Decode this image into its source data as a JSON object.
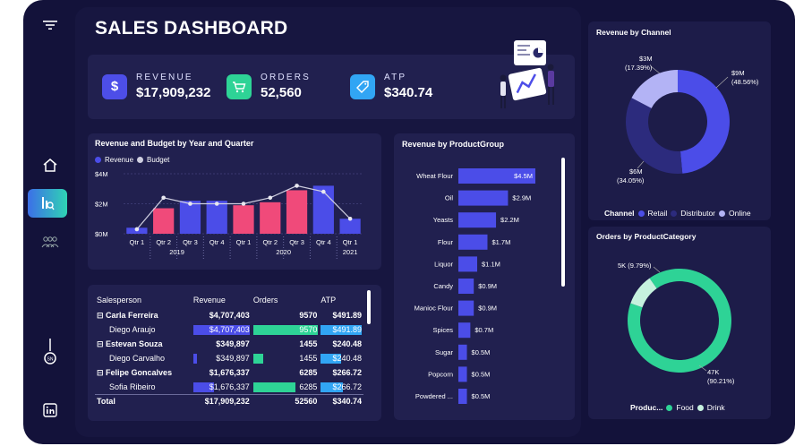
{
  "dashboard": {
    "title": "SALES DASHBOARD"
  },
  "colors": {
    "revenue": "#4b4de8",
    "budget": "#f04a7a",
    "retail": "#4b4de8",
    "distributor": "#2c2b7d",
    "online": "#b3b3f5",
    "food": "#2ed396",
    "drink": "#c6f1de",
    "frame": "#13123a",
    "panel": "#21204f"
  },
  "sidebar": {
    "items": [
      {
        "icon": "filter-icon"
      },
      {
        "icon": "home-icon"
      },
      {
        "icon": "report-icon",
        "active": true
      },
      {
        "icon": "people-icon"
      },
      {
        "icon": "lightbulb-icon"
      },
      {
        "icon": "linkedin-icon"
      }
    ]
  },
  "kpis": [
    {
      "label": "REVENUE",
      "value": "$17,909,232",
      "icon": "dollar-icon",
      "color": "#4d4ee8"
    },
    {
      "label": "ORDERS",
      "value": "52,560",
      "icon": "cart-icon",
      "color": "#2ed396"
    },
    {
      "label": "ATP",
      "value": "$340.74",
      "icon": "tag-icon",
      "color": "#31a5f4"
    }
  ],
  "chart_data": [
    {
      "type": "bar",
      "title": "Revenue and Budget by Year and Quarter",
      "legend": [
        "Revenue",
        "Budget"
      ],
      "y_ticks": [
        "$0M",
        "$2M",
        "$4M"
      ],
      "ylim": [
        0,
        4
      ],
      "categories": [
        {
          "q": "Qtr 1",
          "year": "2019"
        },
        {
          "q": "Qtr 2",
          "year": "2019"
        },
        {
          "q": "Qtr 3",
          "year": "2019"
        },
        {
          "q": "Qtr 4",
          "year": "2019"
        },
        {
          "q": "Qtr 1",
          "year": "2020"
        },
        {
          "q": "Qtr 2",
          "year": "2020"
        },
        {
          "q": "Qtr 3",
          "year": "2020"
        },
        {
          "q": "Qtr 4",
          "year": "2020"
        },
        {
          "q": "Qtr 1",
          "year": "2021"
        }
      ],
      "years": [
        "2019",
        "2020",
        "2021"
      ],
      "values": [
        0.4,
        1.7,
        2.2,
        2.2,
        1.9,
        2.1,
        2.9,
        3.2,
        1.0
      ],
      "budget": [
        0.3,
        2.4,
        2.0,
        2.0,
        2.0,
        2.4,
        3.2,
        2.8,
        1.0
      ]
    },
    {
      "type": "bar",
      "orientation": "horizontal",
      "title": "Revenue by ProductGroup",
      "categories": [
        "Wheat Flour",
        "Oil",
        "Yeasts",
        "Flour",
        "Liquor",
        "Candy",
        "Manioc Flour",
        "Spices",
        "Sugar",
        "Popcorn",
        "Powdered ..."
      ],
      "values": [
        4.5,
        2.9,
        2.2,
        1.7,
        1.1,
        0.9,
        0.9,
        0.7,
        0.5,
        0.5,
        0.5
      ],
      "labels": [
        "$4.5M",
        "$2.9M",
        "$2.2M",
        "$1.7M",
        "$1.1M",
        "$0.9M",
        "$0.9M",
        "$0.7M",
        "$0.5M",
        "$0.5M",
        "$0.5M"
      ]
    },
    {
      "type": "pie",
      "title": "Revenue by Channel",
      "legend_title": "Channel",
      "categories": [
        "Retail",
        "Distributor",
        "Online"
      ],
      "values": [
        48.56,
        34.05,
        17.39
      ],
      "labels": [
        [
          "$9M",
          "(48.56%)"
        ],
        [
          "$6M",
          "(34.05%)"
        ],
        [
          "$3M",
          "(17.39%)"
        ]
      ]
    },
    {
      "type": "pie",
      "title": "Orders by ProductCategory",
      "legend_title": "Produc...",
      "categories": [
        "Food",
        "Drink"
      ],
      "values": [
        90.21,
        9.79
      ],
      "labels": [
        [
          "47K",
          "(90.21%)"
        ],
        [
          "5K (9.79%)"
        ]
      ]
    }
  ],
  "table": {
    "headers": [
      "Salesperson",
      "Revenue",
      "Orders",
      "ATP"
    ],
    "rows": [
      {
        "name": "⊟ Carla Ferreira",
        "revenue": "$4,707,403",
        "orders": "9570",
        "atp": "$491.89",
        "bold": true
      },
      {
        "name": "Diego Araujo",
        "revenue": "$4,707,403",
        "orders": "9570",
        "atp": "$491.89",
        "rev_frac": 1.0,
        "ord_frac": 1.0,
        "atp_frac": 1.0
      },
      {
        "name": "⊟ Estevan Souza",
        "revenue": "$349,897",
        "orders": "1455",
        "atp": "$240.48",
        "bold": true
      },
      {
        "name": "Diego Carvalho",
        "revenue": "$349,897",
        "orders": "1455",
        "atp": "$240.48",
        "rev_frac": 0.07,
        "ord_frac": 0.15,
        "atp_frac": 0.49
      },
      {
        "name": "⊟ Felipe Goncalves",
        "revenue": "$1,676,337",
        "orders": "6285",
        "atp": "$266.72",
        "bold": true
      },
      {
        "name": "Sofia Ribeiro",
        "revenue": "$1,676,337",
        "orders": "6285",
        "atp": "$266.72",
        "rev_frac": 0.36,
        "ord_frac": 0.66,
        "atp_frac": 0.54
      }
    ],
    "total": {
      "name": "Total",
      "revenue": "$17,909,232",
      "orders": "52560",
      "atp": "$340.74"
    }
  }
}
